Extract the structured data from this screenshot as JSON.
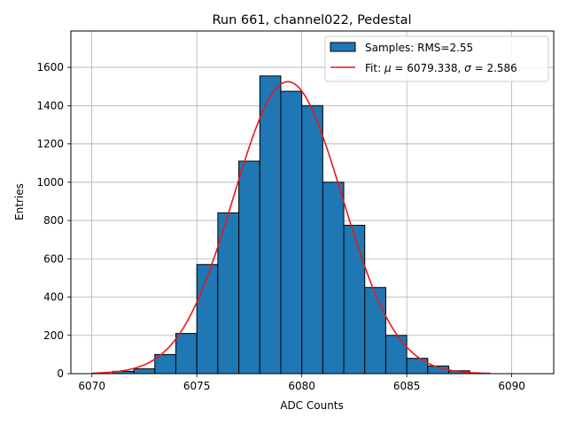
{
  "chart_data": {
    "type": "bar",
    "title": "Run 661, channel022, Pedestal",
    "xlabel": "ADC Counts",
    "ylabel": "Entries",
    "xlim": [
      6069.0,
      6092.0
    ],
    "ylim": [
      0,
      1790
    ],
    "xticks": [
      6070,
      6075,
      6080,
      6085,
      6090
    ],
    "yticks": [
      0,
      200,
      400,
      600,
      800,
      1000,
      1200,
      1400,
      1600
    ],
    "grid": true,
    "legend_position": "top-right",
    "histogram": {
      "name": "Samples: RMS=2.55",
      "color": "#1f77b4",
      "edge_color": "#000000",
      "bin_width": 1,
      "bin_starts": [
        6071,
        6072,
        6073,
        6074,
        6075,
        6076,
        6077,
        6078,
        6079,
        6080,
        6081,
        6082,
        6083,
        6084,
        6085,
        6086,
        6087
      ],
      "values": [
        12,
        25,
        100,
        210,
        570,
        840,
        1110,
        1555,
        1475,
        1400,
        1000,
        775,
        450,
        200,
        80,
        40,
        15
      ]
    },
    "fit": {
      "name": "Fit: μ = 6079.338, σ = 2.586",
      "name_parts": [
        "Fit: ",
        "μ",
        " = 6079.338, ",
        "σ",
        " = 2.586"
      ],
      "color": "#e41a1c",
      "mu": 6079.338,
      "sigma": 2.586,
      "amplitude": 1525,
      "x_range": [
        6070,
        6089
      ]
    }
  }
}
